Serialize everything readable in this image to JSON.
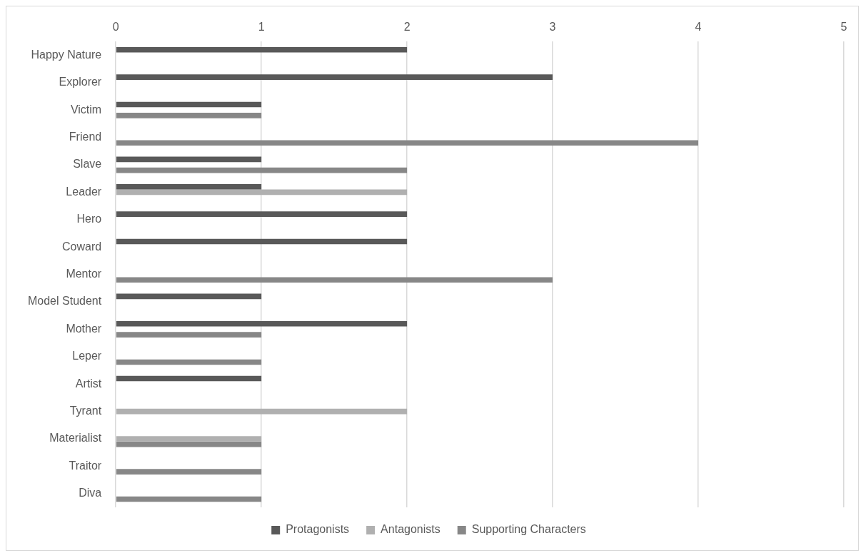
{
  "chart_data": {
    "type": "bar",
    "orientation": "horizontal",
    "categories": [
      "Happy Nature",
      "Explorer",
      "Victim",
      "Friend",
      "Slave",
      "Leader",
      "Hero",
      "Coward",
      "Mentor",
      "Model Student",
      "Mother",
      "Leper",
      "Artist",
      "Tyrant",
      "Materialist",
      "Traitor",
      "Diva"
    ],
    "series": [
      {
        "name": "Protagonists",
        "color": "#595959",
        "values": [
          2,
          3,
          1,
          null,
          1,
          1,
          2,
          2,
          null,
          1,
          2,
          null,
          1,
          null,
          null,
          null,
          null
        ]
      },
      {
        "name": "Antagonists",
        "color": "#b0b0b0",
        "values": [
          null,
          null,
          null,
          null,
          null,
          2,
          null,
          null,
          null,
          null,
          null,
          null,
          null,
          2,
          1,
          null,
          null
        ]
      },
      {
        "name": "Supporting Characters",
        "color": "#878787",
        "values": [
          null,
          null,
          1,
          4,
          2,
          null,
          null,
          null,
          3,
          null,
          1,
          1,
          null,
          null,
          1,
          1,
          1
        ]
      }
    ],
    "xlim": [
      0,
      5
    ],
    "xticks": [
      0,
      1,
      2,
      3,
      4,
      5
    ],
    "grid": "x",
    "legend": "bottom"
  }
}
